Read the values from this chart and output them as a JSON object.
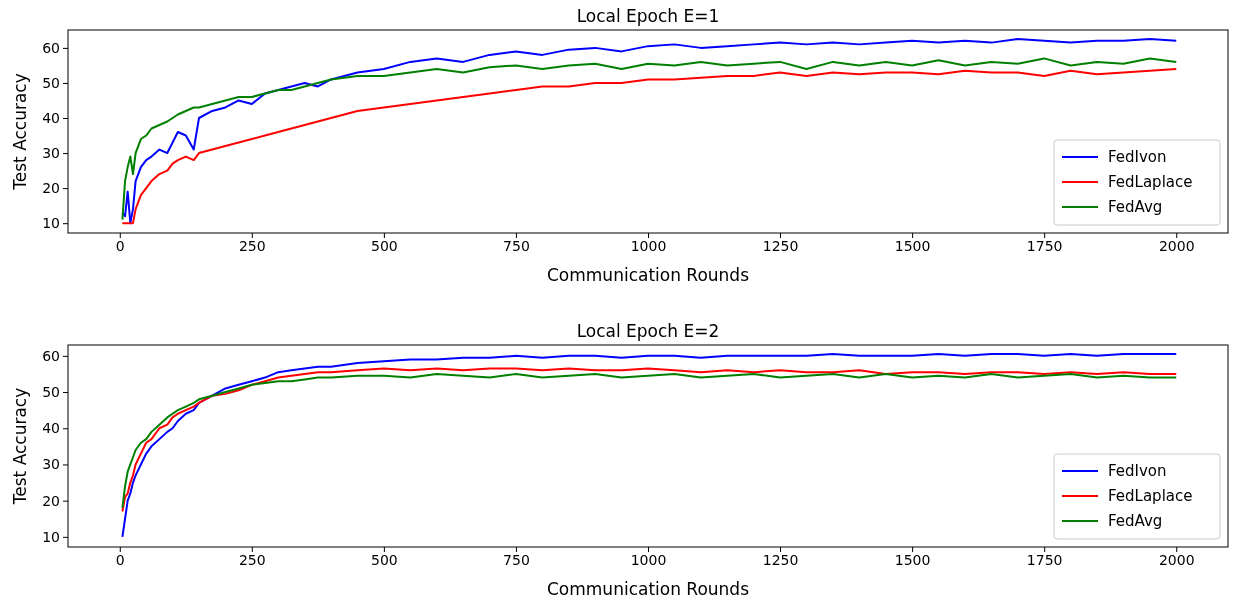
{
  "chart_data": [
    {
      "type": "line",
      "title": "Local Epoch E=1",
      "xlabel": "Communication Rounds",
      "ylabel": "Test Accuracy",
      "legend": "bottom right",
      "xlim": [
        -98,
        2098
      ],
      "ylim": [
        7.2,
        65.1
      ],
      "xticks": [
        0,
        250,
        500,
        750,
        1000,
        1250,
        1500,
        1750,
        2000
      ],
      "yticks": [
        10,
        20,
        30,
        40,
        50,
        60
      ],
      "x": [
        5,
        10,
        15,
        20,
        25,
        30,
        40,
        50,
        60,
        75,
        90,
        100,
        110,
        125,
        140,
        150,
        175,
        200,
        225,
        250,
        275,
        300,
        325,
        350,
        375,
        400,
        450,
        500,
        550,
        600,
        650,
        700,
        750,
        800,
        850,
        900,
        950,
        1000,
        1050,
        1100,
        1150,
        1200,
        1250,
        1300,
        1350,
        1400,
        1450,
        1500,
        1550,
        1600,
        1650,
        1700,
        1750,
        1800,
        1850,
        1900,
        1950,
        2000
      ],
      "series": [
        {
          "name": "FedIvon",
          "color": "#0000ff",
          "values": [
            13,
            12,
            19,
            10,
            14,
            22,
            26,
            28,
            29,
            31,
            30,
            33,
            36,
            35,
            31,
            40,
            42,
            43,
            45,
            44,
            47,
            48,
            49,
            50,
            49,
            51,
            53,
            54,
            56,
            57,
            56,
            58,
            59,
            58,
            59.5,
            60,
            59,
            60.5,
            61,
            60,
            60.5,
            61,
            61.5,
            61,
            61.5,
            61,
            61.5,
            62,
            61.5,
            62,
            61.5,
            62.5,
            62,
            61.5,
            62,
            62,
            62.5,
            62
          ]
        },
        {
          "name": "FedLaplace",
          "color": "#ff0000",
          "values": [
            10,
            10,
            10,
            10,
            10,
            14,
            18,
            20,
            22,
            24,
            25,
            27,
            28,
            29,
            28,
            30,
            31,
            32,
            33,
            34,
            35,
            36,
            37,
            38,
            39,
            40,
            42,
            43,
            44,
            45,
            46,
            47,
            48,
            49,
            49,
            50,
            50,
            51,
            51,
            51.5,
            52,
            52,
            53,
            52,
            53,
            52.5,
            53,
            53,
            52.5,
            53.5,
            53,
            53,
            52,
            53.5,
            52.5,
            53,
            53.5,
            54
          ]
        },
        {
          "name": "FedAvg",
          "color": "#008000",
          "values": [
            11,
            22,
            26,
            29,
            24,
            30,
            34,
            35,
            37,
            38,
            39,
            40,
            41,
            42,
            43,
            43,
            44,
            45,
            46,
            46,
            47,
            48,
            48,
            49,
            50,
            51,
            52,
            52,
            53,
            54,
            53,
            54.5,
            55,
            54,
            55,
            55.5,
            54,
            55.5,
            55,
            56,
            55,
            55.5,
            56,
            54,
            56,
            55,
            56,
            55,
            56.5,
            55,
            56,
            55.5,
            57,
            55,
            56,
            55.5,
            57,
            56
          ]
        }
      ]
    },
    {
      "type": "line",
      "title": "Local Epoch E=2",
      "xlabel": "Communication Rounds",
      "ylabel": "Test Accuracy",
      "legend": "bottom right",
      "xlim": [
        -98,
        2098
      ],
      "ylim": [
        7.2,
        63
      ],
      "xticks": [
        0,
        250,
        500,
        750,
        1000,
        1250,
        1500,
        1750,
        2000
      ],
      "yticks": [
        10,
        20,
        30,
        40,
        50,
        60
      ],
      "x": [
        5,
        10,
        15,
        20,
        25,
        30,
        40,
        50,
        60,
        75,
        90,
        100,
        110,
        125,
        140,
        150,
        175,
        200,
        225,
        250,
        275,
        300,
        325,
        350,
        375,
        400,
        450,
        500,
        550,
        600,
        650,
        700,
        750,
        800,
        850,
        900,
        950,
        1000,
        1050,
        1100,
        1150,
        1200,
        1250,
        1300,
        1350,
        1400,
        1450,
        1500,
        1550,
        1600,
        1650,
        1700,
        1750,
        1800,
        1850,
        1900,
        1950,
        2000
      ],
      "series": [
        {
          "name": "FedIvon",
          "color": "#0000ff",
          "values": [
            10,
            15,
            20,
            22,
            25,
            27,
            30,
            33,
            35,
            37,
            39,
            40,
            42,
            44,
            45,
            47,
            49,
            51,
            52,
            53,
            54,
            55.5,
            56,
            56.5,
            57,
            57,
            58,
            58.5,
            59,
            59,
            59.5,
            59.5,
            60,
            59.5,
            60,
            60,
            59.5,
            60,
            60,
            59.5,
            60,
            60,
            60,
            60,
            60.5,
            60,
            60,
            60,
            60.5,
            60,
            60.5,
            60.5,
            60,
            60.5,
            60,
            60.5,
            60.5,
            60.5
          ]
        },
        {
          "name": "FedLaplace",
          "color": "#ff0000",
          "values": [
            17,
            21,
            22,
            25,
            27,
            30,
            33,
            36,
            37,
            40,
            41,
            43,
            44,
            45,
            46,
            47,
            49,
            49.5,
            50.5,
            52,
            53,
            54,
            54.5,
            55,
            55.5,
            55.5,
            56,
            56.5,
            56,
            56.5,
            56,
            56.5,
            56.5,
            56,
            56.5,
            56,
            56,
            56.5,
            56,
            55.5,
            56,
            55.5,
            56,
            55.5,
            55.5,
            56,
            55,
            55.5,
            55.5,
            55,
            55.5,
            55.5,
            55,
            55.5,
            55,
            55.5,
            55,
            55
          ]
        },
        {
          "name": "FedAvg",
          "color": "#008000",
          "values": [
            18,
            24,
            28,
            30,
            32,
            34,
            36,
            37,
            39,
            41,
            43,
            44,
            45,
            46,
            47,
            48,
            49,
            50,
            51,
            52,
            52.5,
            53,
            53,
            53.5,
            54,
            54,
            54.5,
            54.5,
            54,
            55,
            54.5,
            54,
            55,
            54,
            54.5,
            55,
            54,
            54.5,
            55,
            54,
            54.5,
            55,
            54,
            54.5,
            55,
            54,
            55,
            54,
            54.5,
            54,
            55,
            54,
            54.5,
            55,
            54,
            54.5,
            54,
            54
          ]
        }
      ]
    }
  ]
}
